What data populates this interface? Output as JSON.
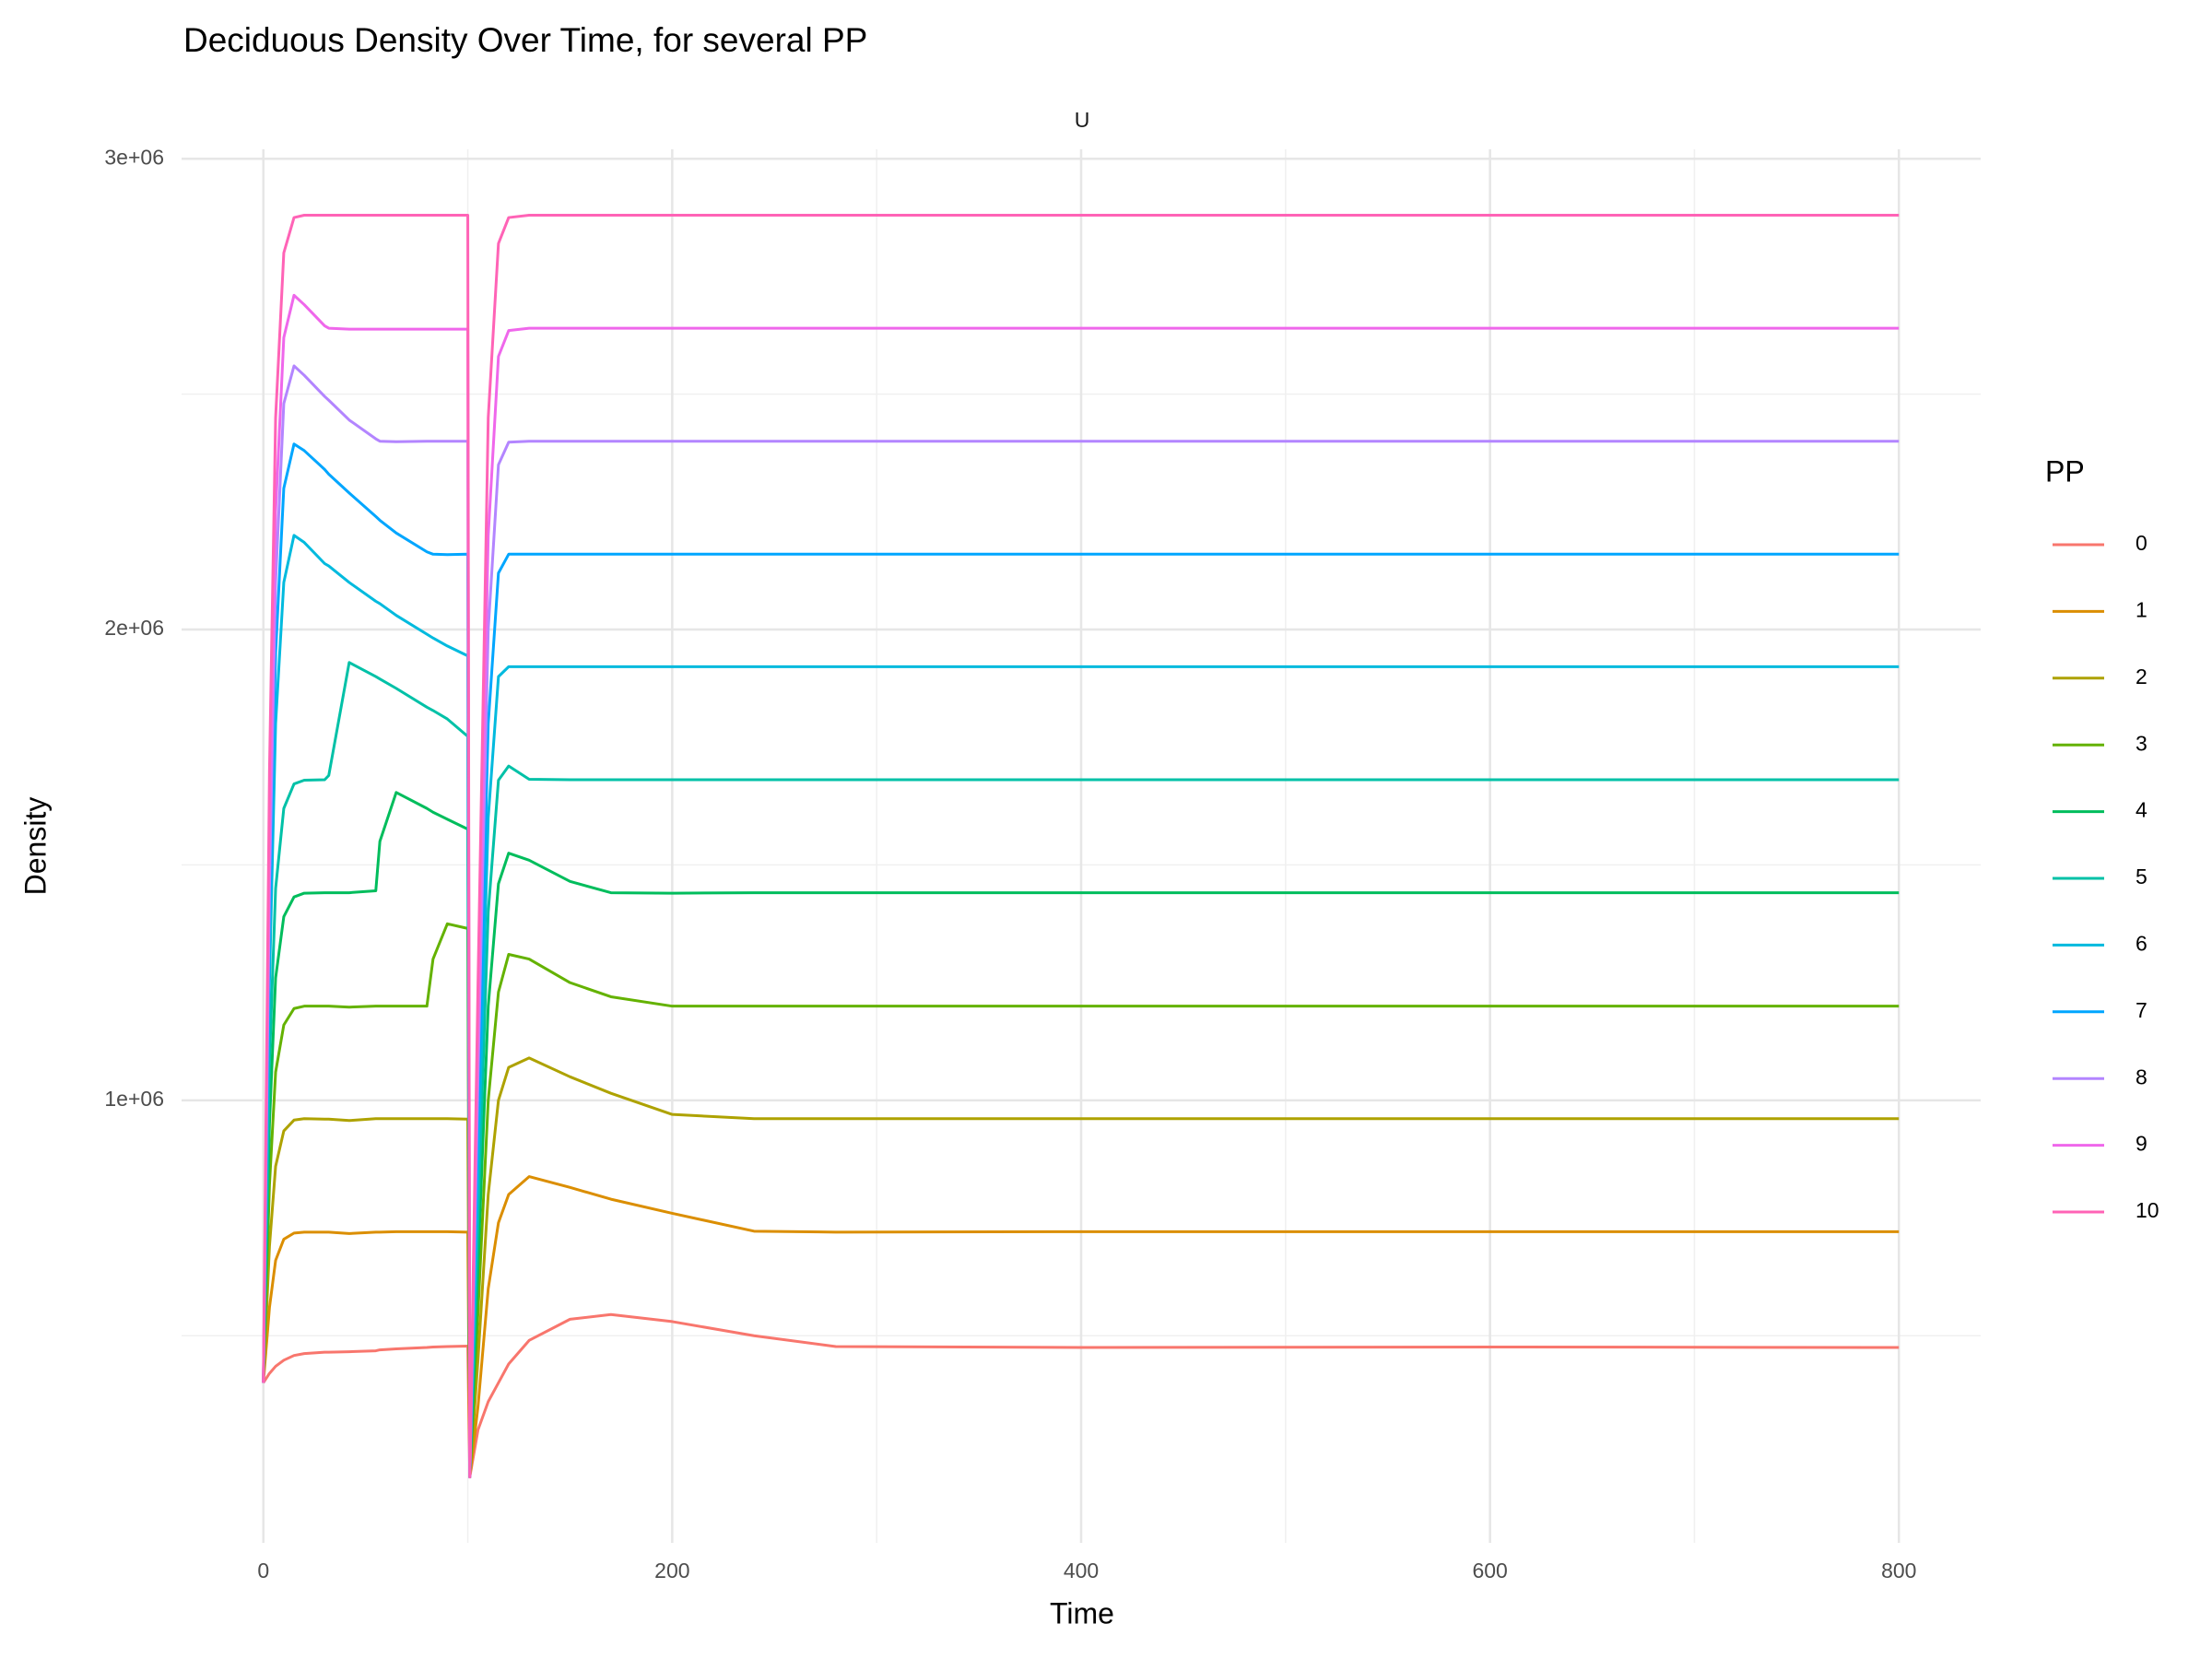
{
  "chart_data": {
    "type": "line",
    "title": "Deciduous Density Over Time, for several PP",
    "facet_label": "U",
    "x_label": "Time",
    "y_label": "Density",
    "legend_title": "PP",
    "legend_position": "right",
    "grid": true,
    "xlim": [
      -40,
      840
    ],
    "ylim": [
      60000,
      3020000
    ],
    "xticks": [
      0,
      200,
      400,
      600,
      800
    ],
    "xminor": [
      100,
      300,
      500,
      700
    ],
    "yticks": [
      {
        "value": 1000000,
        "label": "1e+06"
      },
      {
        "value": 2000000,
        "label": "2e+06"
      },
      {
        "value": 3000000,
        "label": "3e+06"
      }
    ],
    "yminor": [
      500000,
      1500000,
      2500000
    ],
    "x": [
      0,
      3,
      6,
      10,
      15,
      20,
      30,
      32,
      42,
      55,
      57,
      65,
      80,
      83,
      90,
      100,
      101,
      105,
      110,
      115,
      120,
      130,
      150,
      170,
      200,
      240,
      280,
      400,
      600,
      800
    ],
    "series": [
      {
        "name": "0",
        "color": "#F8766D",
        "values": [
          400000,
          420000,
          435000,
          448000,
          458000,
          462000,
          465000,
          465000,
          466000,
          468000,
          470000,
          472000,
          475000,
          476000,
          477000,
          478000,
          200000,
          300000,
          360000,
          400000,
          440000,
          490000,
          535000,
          545000,
          530000,
          500000,
          477000,
          475000,
          476000,
          475000
        ]
      },
      {
        "name": "1",
        "color": "#DB8E00",
        "values": [
          400000,
          560000,
          660000,
          705000,
          718000,
          720000,
          720000,
          720000,
          717000,
          720000,
          720000,
          721000,
          721000,
          721000,
          721000,
          720000,
          200000,
          350000,
          600000,
          740000,
          800000,
          838000,
          815000,
          790000,
          760000,
          722000,
          720000,
          721000,
          721000,
          721000
        ]
      },
      {
        "name": "2",
        "color": "#AEA200",
        "values": [
          400000,
          690000,
          860000,
          935000,
          958000,
          961000,
          960000,
          960000,
          957000,
          961000,
          961000,
          961000,
          961000,
          961000,
          961000,
          960000,
          200000,
          450000,
          800000,
          1000000,
          1070000,
          1090000,
          1050000,
          1015000,
          970000,
          961000,
          961000,
          961000,
          961000,
          961000
        ]
      },
      {
        "name": "3",
        "color": "#64B200",
        "values": [
          400000,
          820000,
          1060000,
          1160000,
          1195000,
          1200000,
          1200000,
          1200000,
          1198000,
          1200000,
          1200000,
          1200000,
          1200000,
          1300000,
          1375000,
          1365000,
          200000,
          550000,
          1000000,
          1230000,
          1310000,
          1300000,
          1250000,
          1220000,
          1200000,
          1200000,
          1200000,
          1200000,
          1200000,
          1200000
        ]
      },
      {
        "name": "4",
        "color": "#00BD5C",
        "values": [
          400000,
          950000,
          1260000,
          1390000,
          1432000,
          1440000,
          1441000,
          1441000,
          1441000,
          1445000,
          1550000,
          1654000,
          1620000,
          1612000,
          1597000,
          1576000,
          200000,
          650000,
          1200000,
          1460000,
          1525000,
          1510000,
          1465000,
          1441000,
          1440000,
          1441000,
          1441000,
          1441000,
          1441000,
          1441000
        ]
      },
      {
        "name": "5",
        "color": "#00C1A7",
        "values": [
          400000,
          1080000,
          1450000,
          1620000,
          1672000,
          1680000,
          1681000,
          1690000,
          1930000,
          1900000,
          1895000,
          1875000,
          1835000,
          1828000,
          1810000,
          1773000,
          200000,
          750000,
          1400000,
          1680000,
          1710000,
          1682000,
          1681000,
          1681000,
          1681000,
          1681000,
          1681000,
          1681000,
          1681000,
          1681000
        ]
      },
      {
        "name": "6",
        "color": "#00BADE",
        "values": [
          400000,
          1250000,
          1800000,
          2100000,
          2200000,
          2185000,
          2140000,
          2135000,
          2100000,
          2060000,
          2055000,
          2030000,
          1990000,
          1982000,
          1965000,
          1944000,
          200000,
          850000,
          1600000,
          1900000,
          1921000,
          1921000,
          1921000,
          1921000,
          1921000,
          1921000,
          1921000,
          1921000,
          1921000,
          1921000
        ]
      },
      {
        "name": "7",
        "color": "#00A6FF",
        "values": [
          400000,
          1350000,
          1950000,
          2300000,
          2394000,
          2380000,
          2340000,
          2330000,
          2290000,
          2240000,
          2232000,
          2205000,
          2165000,
          2160000,
          2159000,
          2160000,
          200000,
          950000,
          1800000,
          2120000,
          2160000,
          2160000,
          2160000,
          2160000,
          2160000,
          2160000,
          2160000,
          2160000,
          2160000,
          2160000
        ]
      },
      {
        "name": "8",
        "color": "#B385FF",
        "values": [
          400000,
          1450000,
          2100000,
          2480000,
          2560000,
          2540000,
          2495000,
          2487000,
          2445000,
          2405000,
          2400000,
          2399000,
          2400000,
          2400000,
          2400000,
          2400000,
          200000,
          1050000,
          2000000,
          2350000,
          2398000,
          2400000,
          2400000,
          2400000,
          2400000,
          2400000,
          2400000,
          2400000,
          2400000,
          2400000
        ]
      },
      {
        "name": "9",
        "color": "#EF67EB",
        "values": [
          400000,
          1550000,
          2250000,
          2620000,
          2710000,
          2690000,
          2645000,
          2640000,
          2638000,
          2638000,
          2638000,
          2638000,
          2638000,
          2638000,
          2638000,
          2638000,
          200000,
          1150000,
          2200000,
          2580000,
          2635000,
          2640000,
          2640000,
          2640000,
          2640000,
          2640000,
          2640000,
          2640000,
          2640000,
          2640000
        ]
      },
      {
        "name": "10",
        "color": "#FF63B6",
        "values": [
          400000,
          1700000,
          2450000,
          2800000,
          2875000,
          2880000,
          2880000,
          2880000,
          2880000,
          2880000,
          2880000,
          2880000,
          2880000,
          2880000,
          2880000,
          2880000,
          200000,
          1250000,
          2450000,
          2820000,
          2875000,
          2880000,
          2880000,
          2880000,
          2880000,
          2880000,
          2880000,
          2880000,
          2880000,
          2880000
        ]
      }
    ]
  }
}
